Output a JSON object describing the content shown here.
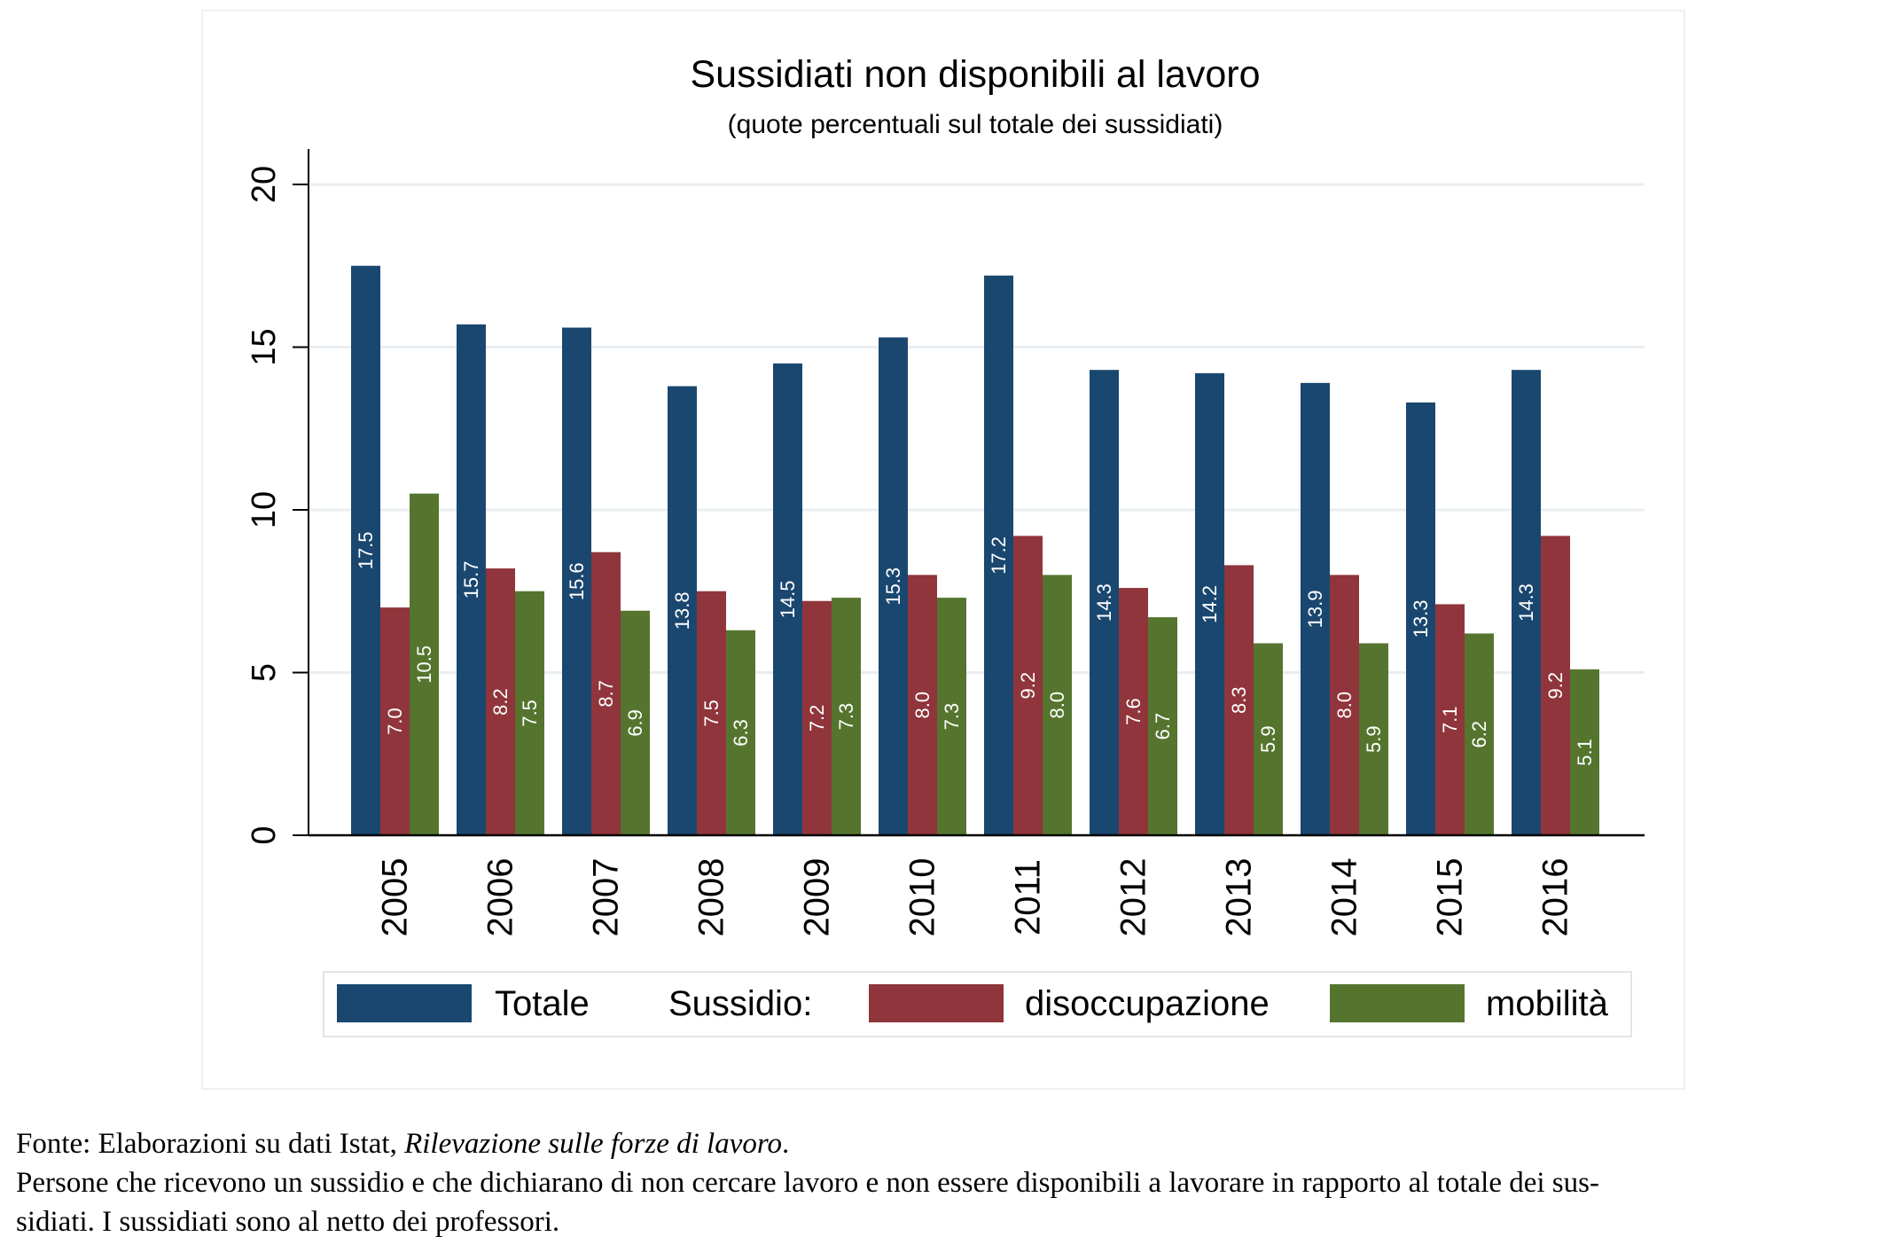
{
  "chart_data": {
    "type": "bar",
    "title": "Sussidiati non disponibili al lavoro",
    "subtitle": "(quote percentuali sul totale dei sussidiati)",
    "xlabel": "",
    "ylabel": "",
    "ylim": [
      0,
      20
    ],
    "yticks": [
      "0",
      "5",
      "10",
      "15",
      "20"
    ],
    "grid": true,
    "categories": [
      "2005",
      "2006",
      "2007",
      "2008",
      "2009",
      "2010",
      "2011",
      "2012",
      "2013",
      "2014",
      "2015",
      "2016"
    ],
    "series": [
      {
        "name": "Totale",
        "color": "#1a476f",
        "values": [
          17.5,
          15.7,
          15.6,
          13.8,
          14.5,
          15.3,
          17.2,
          14.3,
          14.2,
          13.9,
          13.3,
          14.3
        ],
        "labels": [
          "17.5",
          "15.7",
          "15.6",
          "13.8",
          "14.5",
          "15.3",
          "17.2",
          "14.3",
          "14.2",
          "13.9",
          "13.3",
          "14.3"
        ]
      },
      {
        "name": "disoccupazione",
        "color": "#90353b",
        "values": [
          7.0,
          8.2,
          8.7,
          7.5,
          7.2,
          8.0,
          9.2,
          7.6,
          8.3,
          8.0,
          7.1,
          9.2
        ],
        "labels": [
          "7.0",
          "8.2",
          "8.7",
          "7.5",
          "7.2",
          "8.0",
          "9.2",
          "7.6",
          "8.3",
          "8.0",
          "7.1",
          "9.2"
        ]
      },
      {
        "name": "mobilità",
        "color": "#55752f",
        "values": [
          10.5,
          7.5,
          6.9,
          6.3,
          7.3,
          7.3,
          8.0,
          6.7,
          5.9,
          5.9,
          6.2,
          5.1
        ],
        "labels": [
          "10.5",
          "7.5",
          "6.9",
          "6.3",
          "7.3",
          "7.3",
          "8.0",
          "6.7",
          "5.9",
          "5.9",
          "6.2",
          "5.1"
        ]
      }
    ],
    "legend": {
      "position": "bottom",
      "group_label": "Sussidio:",
      "entries": [
        "Totale",
        "disoccupazione",
        "mobilità"
      ]
    }
  },
  "notes": {
    "source_prefix": "Fonte: Elaborazioni su dati Istat, ",
    "source_title": "Rilevazione sulle forze di lavoro",
    "source_suffix": ".",
    "line2": "Persone che ricevono un sussidio e che dichiarano di non cercare lavoro e non essere disponibili a lavorare in rapporto al totale dei sus-",
    "line3": "sidiati. I sussidiati sono al netto dei professori."
  }
}
